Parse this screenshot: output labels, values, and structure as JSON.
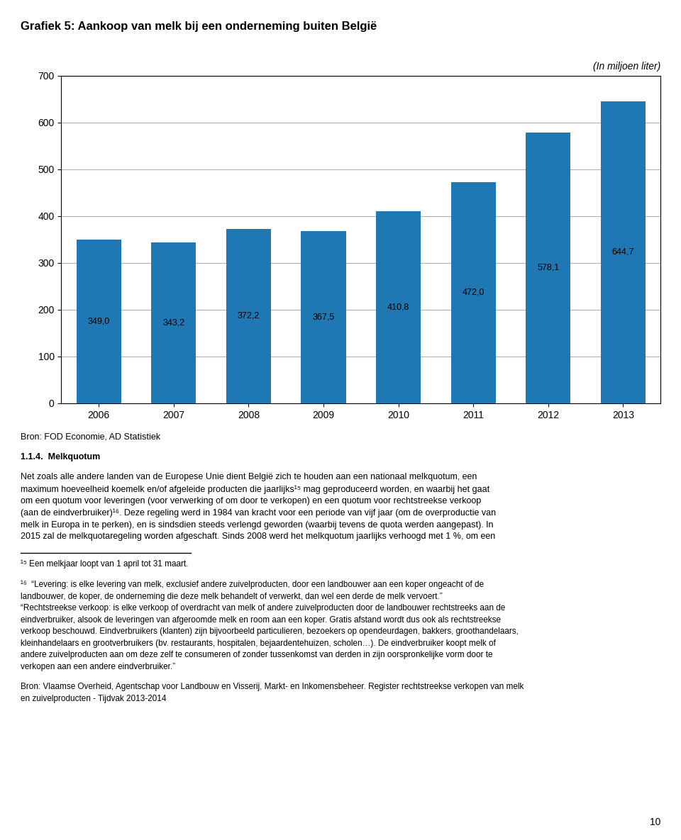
{
  "chart_data": {
    "type": "bar",
    "title": "Grafiek 5: Aankoop van melk bij een onderneming buiten België",
    "subtitle": "(In miljoen liter)",
    "categories": [
      "2006",
      "2007",
      "2008",
      "2009",
      "2010",
      "2011",
      "2012",
      "2013"
    ],
    "values": [
      349.0,
      343.2,
      372.2,
      367.5,
      410.8,
      472.0,
      578.1,
      644.7
    ],
    "value_labels": [
      "349,0",
      "343,2",
      "372,2",
      "367,5",
      "410,8",
      "472,0",
      "578,1",
      "644,7"
    ],
    "data_labels": true,
    "ylim": [
      0,
      700
    ],
    "yticks": [
      0,
      100,
      200,
      300,
      400,
      500,
      600,
      700
    ],
    "grid": true,
    "annotations": [
      "Bron: FOD Economie, AD Statistiek",
      "1.1.4.  Melkquotum",
      "Net zoals alle andere landen van de Europese Unie dient België zich te houden aan een nationaal melkquotum, een\nmaximum hoeveelheid koemelk en/of afgeleide producten die jaarlijks¹⁵ mag geproduceerd worden, en waarbij het gaat\nom een quotum voor leveringen (voor verwerking of om door te verkopen) en een quotum voor rechtstreekse verkoop\n(aan de eindverbruiker)¹⁶. Deze regeling werd in 1984 van kracht voor een periode van vijf jaar (om de overproductie van\nmelk in Europa in te perken), en is sindsdien steeds verlengd geworden (waarbij tevens de quota werden aangepast). In\n2015 zal de melkquotaregeling worden afgeschaft. Sinds 2008 werd het melkquotum jaarlijks verhoogd met 1 %, om een",
      "¹⁵ Een melkjaar loopt van 1 april tot 31 maart.",
      "¹⁶  “Levering: is elke levering van melk, exclusief andere zuivelproducten, door een landbouwer aan een koper ongeacht of de\nlandbouwer, de koper, de onderneming die deze melk behandelt of verwerkt, dan wel een derde de melk vervoert.”\n“Rechtstreekse verkoop: is elke verkoop of overdracht van melk of andere zuivelproducten door de landbouwer rechtstreeks aan de\neindverbruiker, alsook de leveringen van afgeroomde melk en room aan een koper. Gratis afstand wordt dus ook als rechtstreekse\nverkoop beschouwd. Eindverbruikers (klanten) zijn bijvoorbeeld particulieren, bezoekers op opendeurdagen, bakkers, groothandelaars,\nkleinhandelaars en grootverbruikers (bv. restaurants, hospitalen, bejaardentehuizen, scholen…). De eindverbruiker koopt melk of\nandere zuivelproducten aan om deze zelf te consumeren of zonder tussenkomst van derden in zijn oorspronkelijke vorm door te\nverkopen aan een andere eindverbruiker.”",
      "Bron: Vlaamse Overheid, Agentschap voor Landbouw en Visserij, Markt- en Inkomensbeheer. Register rechtstreekse verkopen van melk\nen zuivelproducten - Tijdvak 2013-2014",
      "10"
    ]
  }
}
